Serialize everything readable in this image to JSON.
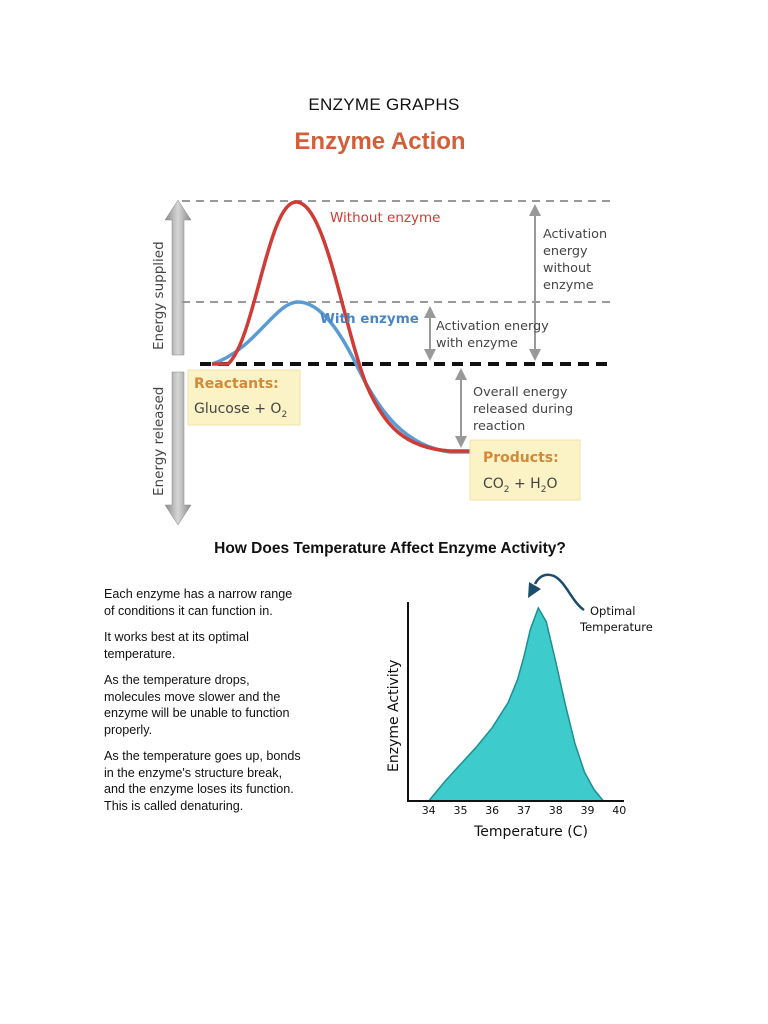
{
  "document": {
    "title": "ENZYME GRAPHS"
  },
  "enzyme_action": {
    "title": "Enzyme Action",
    "energy_supplied_label": "Energy supplied",
    "energy_released_label": "Energy released",
    "without_enzyme_label": "Without enzyme",
    "with_enzyme_label": "With enzyme",
    "activation_without_lines": [
      "Activation",
      "energy",
      "without",
      "enzyme"
    ],
    "activation_with_lines": [
      "Activation energy",
      "with enzyme"
    ],
    "overall_energy_lines": [
      "Overall energy",
      "released during",
      "reaction"
    ],
    "reactants": {
      "label": "Reactants:",
      "formula": "Glucose + O",
      "subscript": "2"
    },
    "products": {
      "label": "Products:",
      "formula_parts": [
        "CO",
        "2",
        " + H",
        "2",
        "O"
      ]
    },
    "colors": {
      "without": "#d03b35",
      "with": "#5b9bd5",
      "title": "#d1603a",
      "box": "#fbf3c6",
      "box_label": "#d2893a"
    }
  },
  "temperature": {
    "title": "How Does Temperature Affect Enzyme Activity?",
    "paragraphs": [
      [
        "Each enzyme has a narrow range",
        "of conditions it can function in."
      ],
      [
        "It works best at its optimal",
        "temperature."
      ],
      [
        "As the temperature drops,",
        "molecules move slower and the",
        "enzyme will be unable to function",
        "properly."
      ],
      [
        "As the temperature goes up, bonds",
        "in the enzyme's structure break,",
        "and the enzyme loses its function.",
        "This is called denaturing."
      ]
    ],
    "optimal_label_lines": [
      "Optimal",
      "Temperature"
    ],
    "colors": {
      "fill": "#3ecbcb",
      "stroke": "#1b8f93",
      "arrow": "#1d4d6b"
    }
  },
  "chart_data": {
    "type": "area",
    "title": "",
    "xlabel": "Temperature (C)",
    "ylabel": "Enzyme Activity",
    "x_ticks": [
      "34",
      "35",
      "36",
      "37",
      "38",
      "39",
      "40"
    ],
    "xlim": [
      33.6,
      40.4
    ],
    "ylim": [
      0,
      1
    ],
    "series": [
      {
        "x": [
          34.0,
          34.5,
          35.0,
          35.5,
          36.0,
          36.5,
          36.8,
          37.0,
          37.2,
          37.45,
          37.7,
          38.0,
          38.3,
          38.6,
          38.9,
          39.2,
          39.5
        ],
        "y": [
          0.0,
          0.1,
          0.19,
          0.28,
          0.38,
          0.51,
          0.63,
          0.75,
          0.89,
          1.0,
          0.93,
          0.72,
          0.5,
          0.3,
          0.15,
          0.06,
          0.0
        ]
      }
    ],
    "grid": false,
    "annotation": "Optimal Temperature"
  }
}
